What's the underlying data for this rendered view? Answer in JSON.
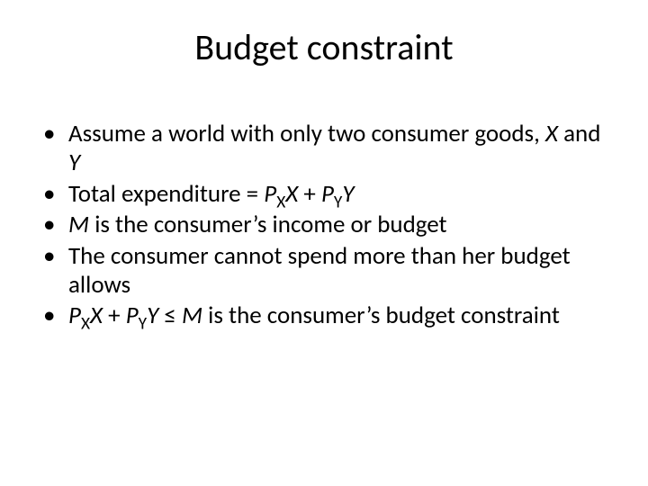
{
  "slide": {
    "title": "Budget constraint",
    "title_fontsize": 40,
    "body_fontsize": 27,
    "background_color": "#ffffff",
    "text_color": "#000000",
    "bullets": [
      {
        "html": "Assume a world with only two consumer goods, <span class=\"ital\">X</span> and <span class=\"ital\">Y</span>"
      },
      {
        "html": "Total expenditure = <span class=\"ital\">P</span><sub>X</sub><span class=\"ital\">X</span> + <span class=\"ital\">P</span><sub>Y</sub><span class=\"ital\">Y</span>"
      },
      {
        "html": "<span class=\"ital\">M</span> is the consumer’s income or budget"
      },
      {
        "html": "The consumer cannot spend more than her budget allows"
      },
      {
        "html": "<span class=\"ital\">P</span><sub>X</sub><span class=\"ital\">X</span> + <span class=\"ital\">P</span><sub>Y</sub><span class=\"ital\">Y</span> ≤ <span class=\"ital\">M</span> is the consumer’s budget constraint"
      }
    ]
  }
}
